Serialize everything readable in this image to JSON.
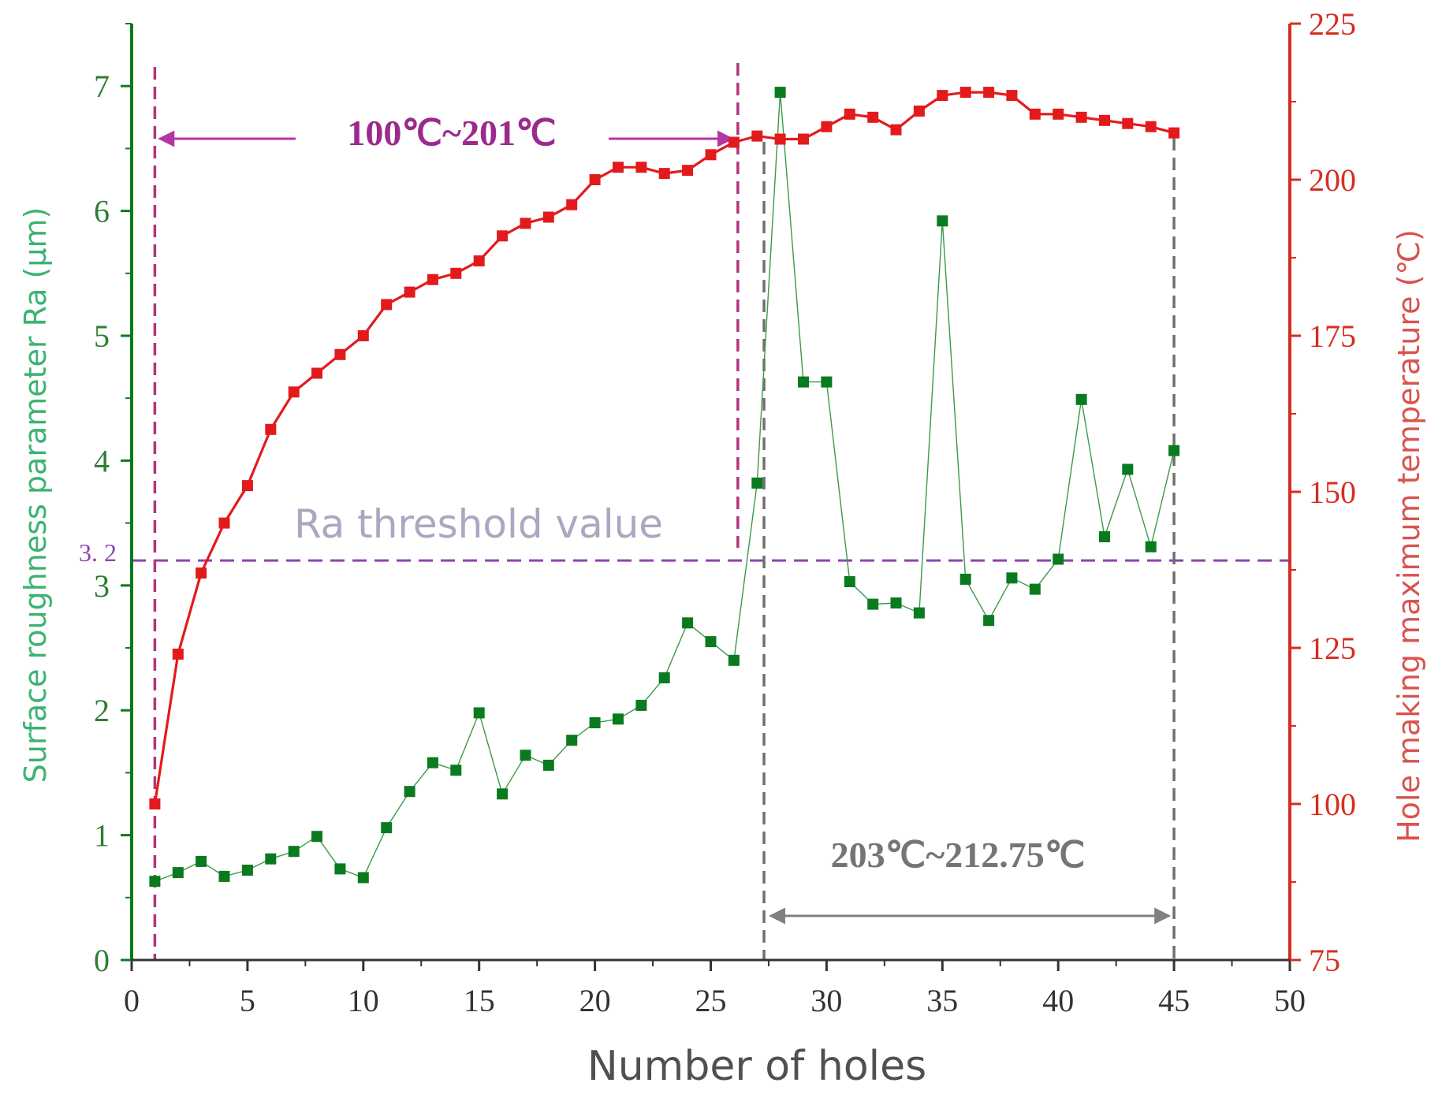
{
  "chart_data": {
    "type": "line",
    "xlabel": "Number of holes",
    "ylabel_left": "Surface roughness parameter Ra (μm)",
    "ylabel_right": "Hole making maximum temperature  (℃)",
    "xlim": [
      0,
      50
    ],
    "ylim_left": [
      0,
      7.5
    ],
    "ylim_right": [
      75,
      225
    ],
    "x_ticks": [
      "0",
      "5",
      "10",
      "15",
      "20",
      "25",
      "30",
      "35",
      "40",
      "45",
      "50"
    ],
    "y_left_ticks": [
      "0",
      "1",
      "2",
      "3",
      "4",
      "5",
      "6",
      "7"
    ],
    "y_right_ticks": [
      "75",
      "100",
      "125",
      "150",
      "175",
      "200",
      "225"
    ],
    "series": [
      {
        "name": "Surface roughness Ra",
        "axis": "left",
        "color": "#0a7a1e",
        "x": [
          1,
          2,
          3,
          4,
          5,
          6,
          7,
          8,
          9,
          10,
          11,
          12,
          13,
          14,
          15,
          16,
          17,
          18,
          19,
          20,
          21,
          22,
          23,
          24,
          25,
          26,
          27,
          28,
          29,
          30,
          31,
          32,
          33,
          34,
          35,
          36,
          37,
          38,
          39,
          40,
          41,
          42,
          43,
          44,
          45
        ],
        "values": [
          0.63,
          0.7,
          0.79,
          0.67,
          0.72,
          0.81,
          0.87,
          0.99,
          0.73,
          0.66,
          1.06,
          1.35,
          1.58,
          1.52,
          1.98,
          1.33,
          1.64,
          1.56,
          1.76,
          1.9,
          1.93,
          2.04,
          2.26,
          2.7,
          2.55,
          2.4,
          3.82,
          6.95,
          4.63,
          4.63,
          3.03,
          2.85,
          2.86,
          2.78,
          5.92,
          3.05,
          2.72,
          3.06,
          2.97,
          3.21,
          4.49,
          3.39,
          3.93,
          3.31,
          4.08
        ]
      },
      {
        "name": "Hole making maximum temperature",
        "axis": "right",
        "color": "#e31a1c",
        "x": [
          1,
          2,
          3,
          4,
          5,
          6,
          7,
          8,
          9,
          10,
          11,
          12,
          13,
          14,
          15,
          16,
          17,
          18,
          19,
          20,
          21,
          22,
          23,
          24,
          25,
          26,
          27,
          28,
          29,
          30,
          31,
          32,
          33,
          34,
          35,
          36,
          37,
          38,
          39,
          40,
          41,
          42,
          43,
          44,
          45
        ],
        "values": [
          100,
          124,
          137,
          145,
          151,
          160,
          166,
          169,
          172,
          175,
          180,
          182,
          184,
          185,
          187,
          191,
          193,
          194,
          196,
          200,
          202,
          202,
          201,
          201.5,
          204,
          206,
          207,
          206.5,
          206.5,
          208.5,
          210.5,
          210,
          208,
          211,
          213.5,
          214,
          214,
          213.5,
          210.5,
          210.5,
          210,
          209.5,
          209,
          208.5,
          207.5
        ]
      }
    ],
    "threshold": {
      "value": 3.2,
      "label": "Ra threshold value",
      "tick_label": "3. 2",
      "color": "#8e44ad"
    },
    "annotations": {
      "range_low": {
        "label": "100℃~201℃",
        "x_start": 1,
        "x_end": 26,
        "color": "#9c2a8c"
      },
      "range_high": {
        "label": "203℃~212.75℃",
        "x_start": 27.3,
        "x_end": 45,
        "color": "#757575"
      }
    },
    "colors": {
      "left_axis": "#0a7a1e",
      "right_axis": "#d62d20"
    }
  }
}
